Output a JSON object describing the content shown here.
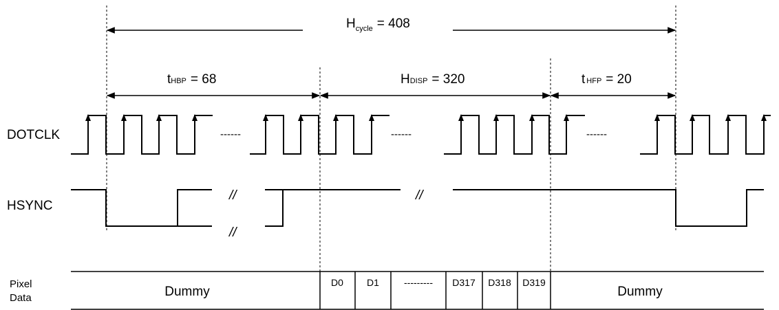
{
  "signals": {
    "dotclk": "DOTCLK",
    "hsync": "HSYNC",
    "pixel_line1": "Pixel",
    "pixel_line2": "Data"
  },
  "timing": {
    "hcycle": {
      "main": "H",
      "sub": "cycle",
      "value": "= 408"
    },
    "thbp": {
      "main": "t",
      "sub": "HBP",
      "value": "=  68"
    },
    "hdisp": {
      "main": "H",
      "sub": "DISP",
      "value": "= 320"
    },
    "thfp": {
      "main": "t",
      "sub": "HFP",
      "value": "= 20"
    }
  },
  "breaks": {
    "dotted": "------",
    "hsync_mark": "//"
  },
  "pixel_data": {
    "left": "Dummy",
    "right": "Dummy",
    "cells": [
      "D0",
      "D1",
      "---------",
      "D317",
      "D318",
      "D319"
    ]
  }
}
